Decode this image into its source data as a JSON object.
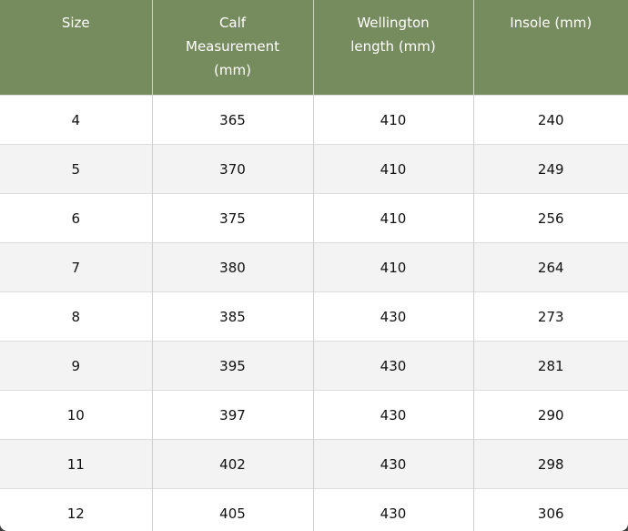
{
  "table": {
    "headers": [
      "Size",
      "Calf Measurement (mm)",
      "Wellington length (mm)",
      "Insole (mm)"
    ],
    "rows": [
      [
        "4",
        "365",
        "410",
        "240"
      ],
      [
        "5",
        "370",
        "410",
        "249"
      ],
      [
        "6",
        "375",
        "410",
        "256"
      ],
      [
        "7",
        "380",
        "410",
        "264"
      ],
      [
        "8",
        "385",
        "430",
        "273"
      ],
      [
        "9",
        "395",
        "430",
        "281"
      ],
      [
        "10",
        "397",
        "430",
        "290"
      ],
      [
        "11",
        "402",
        "430",
        "298"
      ],
      [
        "12",
        "405",
        "430",
        "306"
      ]
    ]
  },
  "colors": {
    "header_bg": "#778c5e",
    "alt_row_bg": "#f3f3f3"
  }
}
